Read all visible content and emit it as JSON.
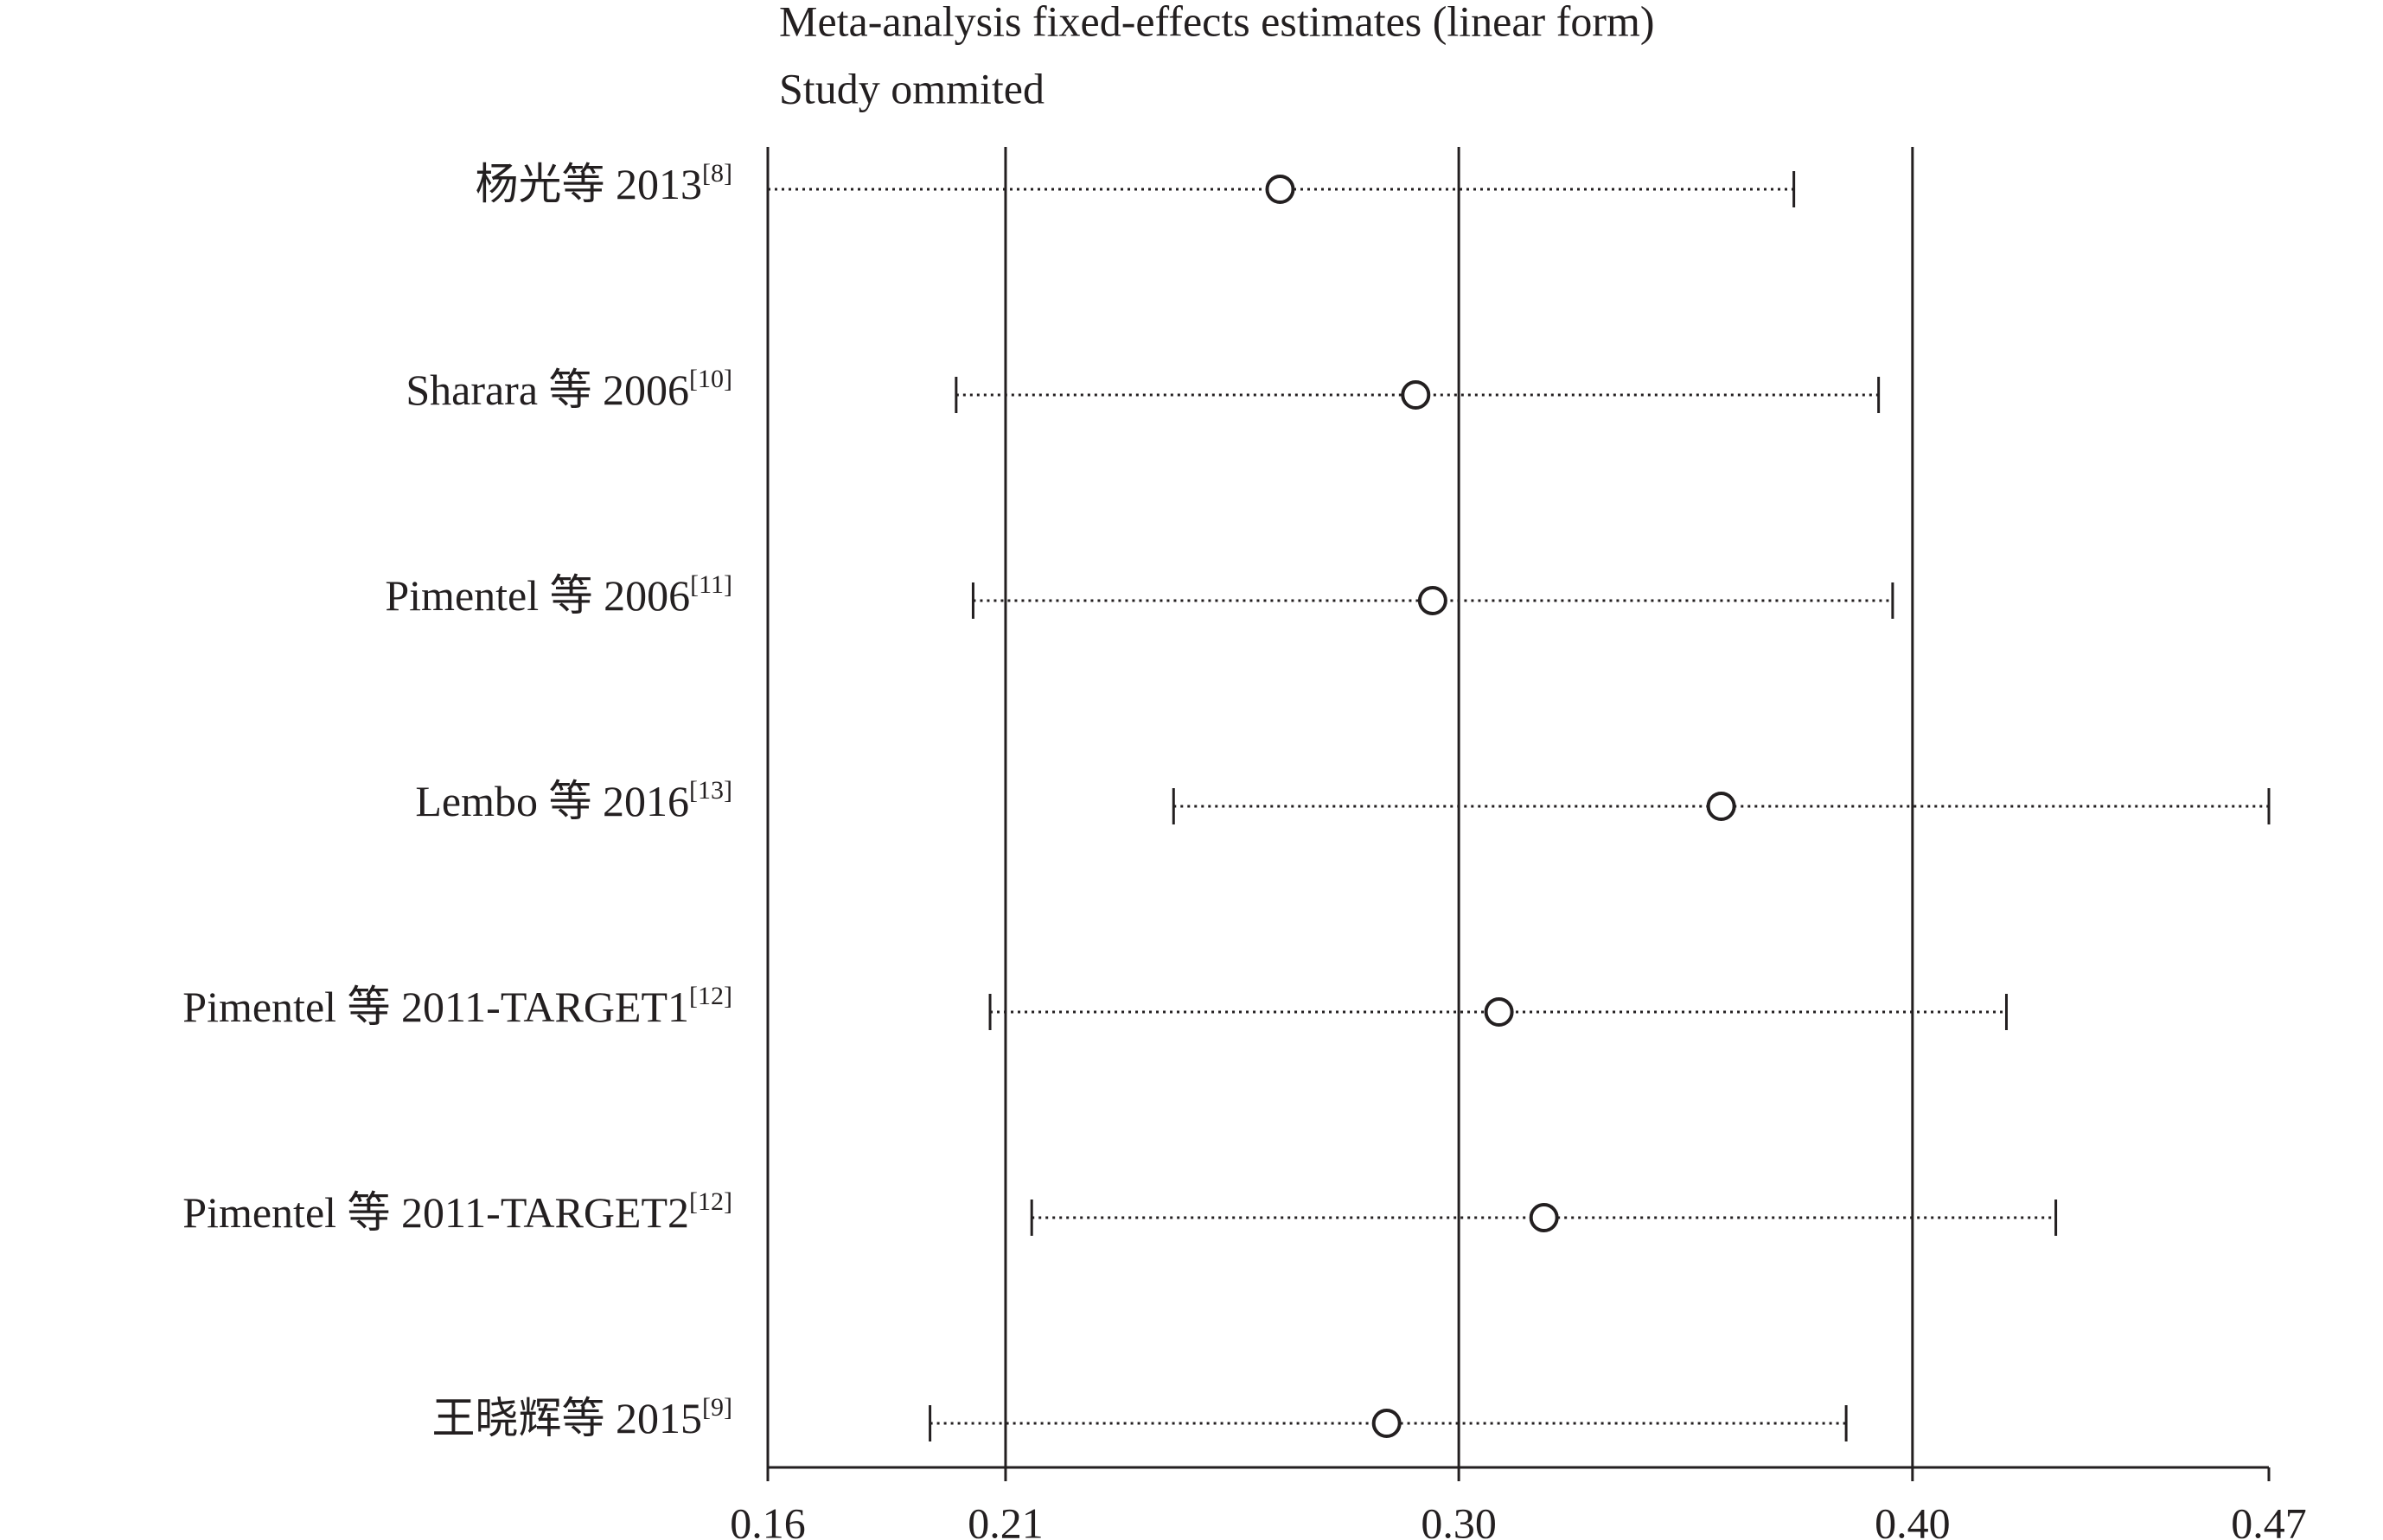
{
  "chart_data": {
    "type": "forest",
    "title": "Meta-analysis fixed-effects estimates (linear form)",
    "subtitle": "Study ommited",
    "color": "#231f20",
    "xlim": [
      0.16,
      0.47
    ],
    "xticks": [
      0.16,
      {
        "value": 0.2091,
        "label": "0.21"
      },
      {
        "value": 0.3027,
        "label": "0.30"
      },
      {
        "value": 0.3964,
        "label": "0.40"
      },
      0.47
    ],
    "categories": [
      {
        "label": "杨光等 2013",
        "ref": "[8]"
      },
      {
        "label": "Sharara 等 2006",
        "ref": "[10]"
      },
      {
        "label": "Pimentel 等 2006",
        "ref": "[11]"
      },
      {
        "label": "Lembo 等 2016",
        "ref": "[13]"
      },
      {
        "label": "Pimentel 等 2011-TARGET1",
        "ref": "[12]"
      },
      {
        "label": "Pimentel 等 2011-TARGET2",
        "ref": "[12]"
      },
      {
        "label": "王晓辉等 2015",
        "ref": "[9]"
      }
    ],
    "values": [
      0.2658,
      0.2938,
      0.2973,
      0.3569,
      0.311,
      0.3203,
      0.2878
    ],
    "lower": [
      0.16,
      0.1989,
      0.2024,
      0.2438,
      0.2059,
      0.2145,
      0.1935
    ],
    "upper": [
      0.3719,
      0.3894,
      0.3923,
      0.47,
      0.4158,
      0.426,
      0.3827
    ]
  }
}
